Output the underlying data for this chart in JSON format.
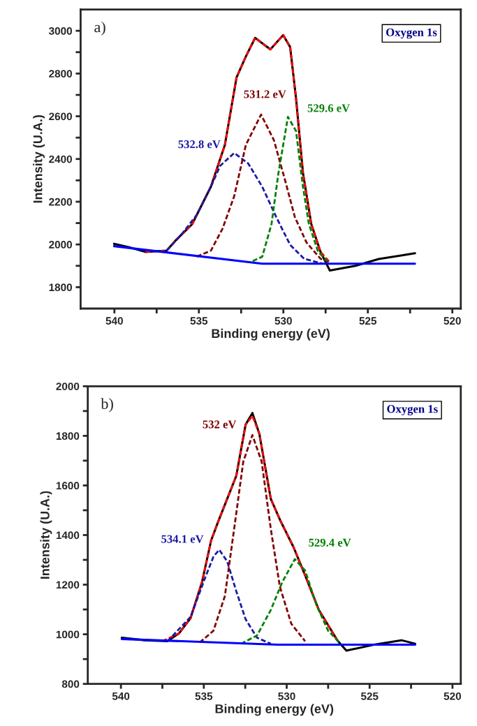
{
  "chart_data": [
    {
      "type": "line",
      "xlabel": "Binding energy (eV)",
      "ylabel": "Intensity (U.A.)",
      "xlim": [
        542,
        519.5
      ],
      "ylim": [
        1700,
        3100
      ],
      "xticks": [
        540,
        {
          "value": 537.5,
          "label": null
        },
        535,
        {
          "value": 532.5,
          "label": null
        },
        530,
        {
          "value": 527.5,
          "label": null
        },
        525,
        {
          "value": 522.5,
          "label": null
        },
        520
      ],
      "yticks": [
        1800,
        {
          "value": 1900,
          "label": null
        },
        2000,
        {
          "value": 2100,
          "label": null
        },
        2200,
        {
          "value": 2300,
          "label": null
        },
        2400,
        {
          "value": 2500,
          "label": null
        },
        2600,
        {
          "value": 2700,
          "label": null
        },
        2800,
        {
          "value": 2900,
          "label": null
        },
        3000
      ],
      "grid": false,
      "legend": false,
      "marker": "none",
      "series": [
        {
          "color": "#000000",
          "line_style": "solid",
          "x": [
            540.02,
            539.12,
            538.16,
            536.91,
            536.36,
            535.39,
            534.29,
            533.46,
            532.77,
            532.22,
            531.67,
            530.77,
            530.01,
            529.6,
            529.25,
            528.84,
            528.35,
            527.8,
            527.25,
            525.73,
            524.35,
            522.97,
            522.21
          ],
          "values": [
            2003,
            1987,
            1965,
            1971,
            2020,
            2096,
            2270,
            2466,
            2782,
            2880,
            2967,
            2913,
            2980,
            2924,
            2684,
            2335,
            2096,
            1965,
            1878,
            1900,
            1932,
            1949,
            1959
          ]
        },
        {
          "color": "#ff0000",
          "line_style": "dashed",
          "x": [
            538.16,
            536.91,
            536.36,
            535.39,
            534.29,
            533.46,
            532.77,
            532.22,
            531.67,
            530.77,
            530.01,
            529.6,
            529.25,
            528.84,
            528.35,
            527.8,
            527.25
          ],
          "values": [
            1965,
            1971,
            2020,
            2096,
            2270,
            2466,
            2782,
            2880,
            2967,
            2913,
            2980,
            2924,
            2684,
            2335,
            2096,
            1965,
            1916
          ]
        },
        {
          "color": "#1a1aa6",
          "line_style": "dashed",
          "x": [
            536.91,
            536.09,
            535.12,
            534.29,
            533.74,
            532.91,
            532.08,
            531.25,
            530.42,
            529.6,
            528.77,
            527.66
          ],
          "values": [
            1971,
            2041,
            2139,
            2270,
            2368,
            2428,
            2379,
            2270,
            2128,
            1998,
            1933,
            1910
          ]
        },
        {
          "color": "#800000",
          "line_style": "dashed",
          "x": [
            535.12,
            534.29,
            533.6,
            532.91,
            532.22,
            531.32,
            530.56,
            529.87,
            529.32,
            528.63,
            527.8,
            527.25
          ],
          "values": [
            1943,
            1971,
            2074,
            2226,
            2466,
            2608,
            2488,
            2292,
            2128,
            2009,
            1933,
            1916
          ]
        },
        {
          "color": "#008000",
          "line_style": "dashed",
          "x": [
            531.81,
            531.25,
            530.7,
            530.29,
            529.73,
            529.25,
            528.84,
            528.49,
            527.94,
            527.39
          ],
          "values": [
            1922,
            1943,
            2096,
            2335,
            2597,
            2531,
            2270,
            2096,
            1965,
            1922
          ]
        },
        {
          "color": "#0000ff",
          "line_style": "solid",
          "x": [
            540.02,
            531.25,
            522.21
          ],
          "values": [
            1992,
            1910,
            1910
          ]
        }
      ],
      "annotations": [
        {
          "text": "532.8 eV",
          "x": 532.91,
          "y": 2428
        },
        {
          "text": "531.2 eV",
          "x": 531.32,
          "y": 2608
        },
        {
          "text": "529.6 eV",
          "x": 529.73,
          "y": 2597
        },
        "a)",
        "Oxygen 1s"
      ]
    },
    {
      "type": "line",
      "xlabel": "Binding energy (eV)",
      "ylabel": "Intensity (U.A.)",
      "xlim": [
        542,
        519.5
      ],
      "ylim": [
        800,
        2000
      ],
      "xticks": [
        540,
        {
          "value": 537.5,
          "label": null
        },
        535,
        {
          "value": 532.5,
          "label": null
        },
        530,
        {
          "value": 527.5,
          "label": null
        },
        525,
        {
          "value": 522.5,
          "label": null
        },
        520
      ],
      "yticks": [
        800,
        {
          "value": 900,
          "label": null
        },
        1000,
        {
          "value": 1100,
          "label": null
        },
        1200,
        {
          "value": 1300,
          "label": null
        },
        1400,
        {
          "value": 1500,
          "label": null
        },
        1600,
        {
          "value": 1700,
          "label": null
        },
        1800,
        {
          "value": 1900,
          "label": null
        },
        2000
      ],
      "grid": false,
      "legend": false,
      "marker": "none",
      "series": [
        {
          "color": "#000000",
          "line_style": "solid",
          "x": [
            539.95,
            538.57,
            537.19,
            536.49,
            535.8,
            535.11,
            534.56,
            534.14,
            533.59,
            533.04,
            532.48,
            532.07,
            531.65,
            530.96,
            530.41,
            529.58,
            528.89,
            528.06,
            526.95,
            526.4,
            524.74,
            523.08,
            522.25
          ],
          "values": [
            986,
            976,
            972,
            1004,
            1065,
            1210,
            1378,
            1453,
            1546,
            1639,
            1845,
            1892,
            1808,
            1546,
            1462,
            1350,
            1238,
            1098,
            976,
            934,
            958,
            976,
            962
          ]
        },
        {
          "color": "#ff0000",
          "line_style": "dashed",
          "x": [
            537.5,
            536.49,
            535.8,
            535.11,
            534.56,
            534.14,
            533.59,
            533.04,
            532.48,
            532.07,
            531.65,
            530.96,
            530.41,
            529.58,
            528.89,
            528.06,
            526.95
          ],
          "values": [
            972,
            1004,
            1065,
            1210,
            1378,
            1453,
            1546,
            1639,
            1845,
            1880,
            1808,
            1546,
            1462,
            1350,
            1238,
            1098,
            976
          ]
        },
        {
          "color": "#1a1aa6",
          "line_style": "dashed",
          "x": [
            537.19,
            535.8,
            534.97,
            534.42,
            534.07,
            533.59,
            533.04,
            532.48,
            531.79,
            530.96
          ],
          "values": [
            972,
            1070,
            1219,
            1313,
            1341,
            1294,
            1173,
            1061,
            986,
            962
          ]
        },
        {
          "color": "#800000",
          "line_style": "dashed",
          "x": [
            535.25,
            534.42,
            533.73,
            533.17,
            532.62,
            532.07,
            531.51,
            530.96,
            530.41,
            529.72,
            528.89
          ],
          "values": [
            967,
            1014,
            1154,
            1425,
            1696,
            1803,
            1696,
            1425,
            1191,
            1042,
            972
          ]
        },
        {
          "color": "#008000",
          "line_style": "dashed",
          "x": [
            532.76,
            531.79,
            530.96,
            530.27,
            529.51,
            528.89,
            528.2,
            527.5,
            526.81
          ],
          "values": [
            962,
            995,
            1098,
            1210,
            1303,
            1257,
            1117,
            1014,
            967
          ]
        },
        {
          "color": "#0000ff",
          "line_style": "solid",
          "x": [
            539.95,
            530.55,
            522.25
          ],
          "values": [
            981,
            958,
            958
          ]
        }
      ],
      "annotations": [
        {
          "text": "534.1 eV",
          "x": 534.07,
          "y": 1341
        },
        {
          "text": "532 eV",
          "x": 532.07,
          "y": 1803
        },
        {
          "text": "529.4 eV",
          "x": 529.51,
          "y": 1303
        },
        "b)",
        "Oxygen 1s"
      ]
    }
  ]
}
